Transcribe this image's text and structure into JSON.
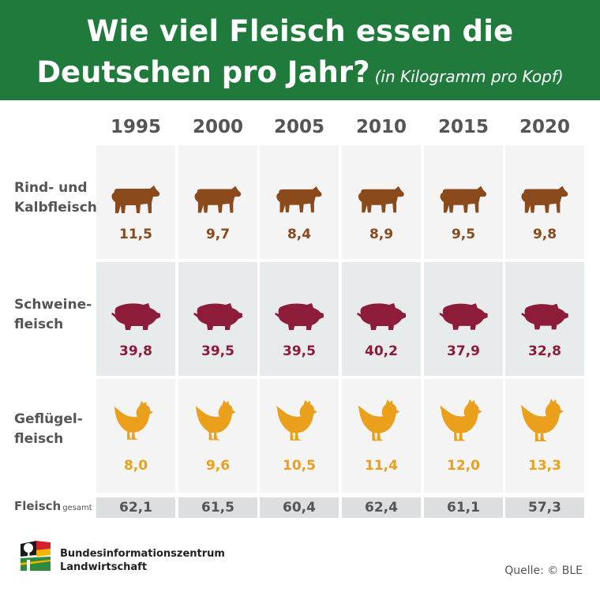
{
  "header": {
    "title_line1": "Wie viel Fleisch essen die",
    "title_line2": "Deutschen pro Jahr?",
    "subtitle": "(in Kilogramm pro Kopf)"
  },
  "chart_data": {
    "type": "table",
    "categories": [
      "1995",
      "2000",
      "2005",
      "2010",
      "2015",
      "2020"
    ],
    "series": [
      {
        "name": "Rind- und Kalbfleisch",
        "label_line1": "Rind- und",
        "label_line2": "Kalbfleisch",
        "values": [
          "11,5",
          "9,7",
          "8,4",
          "8,9",
          "9,5",
          "9,8"
        ],
        "icon": "cow-icon",
        "color": "#8a4a1c"
      },
      {
        "name": "Schweinefleisch",
        "label_line1": "Schweine-",
        "label_line2": "fleisch",
        "values": [
          "39,8",
          "39,5",
          "39,5",
          "40,2",
          "37,9",
          "32,8"
        ],
        "icon": "pig-icon",
        "color": "#8c1c3a"
      },
      {
        "name": "Geflügelfleisch",
        "label_line1": "Geflügel-",
        "label_line2": "fleisch",
        "values": [
          "8,0",
          "9,6",
          "10,5",
          "11,4",
          "12,0",
          "13,3"
        ],
        "icon": "chicken-icon",
        "color": "#eba01c"
      }
    ],
    "totals": {
      "label": "Fleisch",
      "label_suffix": "gesamt",
      "values": [
        "62,1",
        "61,5",
        "60,4",
        "62,4",
        "61,1",
        "57,3"
      ]
    }
  },
  "footer": {
    "org_line1": "Bundesinformationszentrum",
    "org_line2": "Landwirtschaft",
    "source": "Quelle: © BLE"
  },
  "colors": {
    "header_bg": "#1f7a3c",
    "beef": "#8a4a1c",
    "pork": "#8c1c3a",
    "poultry": "#eba01c"
  }
}
